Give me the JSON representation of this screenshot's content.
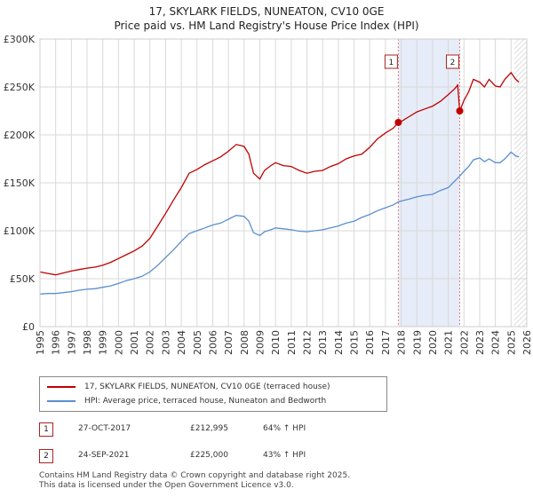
{
  "header": {
    "title": "17, SKYLARK FIELDS, NUNEATON, CV10 0GE",
    "subtitle": "Price paid vs. HM Land Registry's House Price Index (HPI)"
  },
  "colors": {
    "price_paid": "#c00000",
    "hpi": "#5a8fd0",
    "highlight_band": "#e6ecf8",
    "marker_line": "#e08080",
    "grid": "#d9d9d9"
  },
  "chart_data": {
    "type": "line",
    "title": "",
    "xlabel": "",
    "ylabel": "",
    "xlim": [
      1995,
      2026
    ],
    "ylim": [
      0,
      300000
    ],
    "y_ticks": [
      {
        "value": 0,
        "label": "£0"
      },
      {
        "value": 50000,
        "label": "£50K"
      },
      {
        "value": 100000,
        "label": "£100K"
      },
      {
        "value": 150000,
        "label": "£150K"
      },
      {
        "value": 200000,
        "label": "£200K"
      },
      {
        "value": 250000,
        "label": "£250K"
      },
      {
        "value": 300000,
        "label": "£300K"
      }
    ],
    "x_ticks": [
      "1995",
      "1996",
      "1997",
      "1998",
      "1999",
      "2000",
      "2001",
      "2002",
      "2003",
      "2004",
      "2005",
      "2006",
      "2007",
      "2008",
      "2009",
      "2010",
      "2011",
      "2012",
      "2013",
      "2014",
      "2015",
      "2016",
      "2017",
      "2018",
      "2019",
      "2020",
      "2021",
      "2022",
      "2023",
      "2024",
      "2025",
      "2026"
    ],
    "grid": true,
    "highlight_range": [
      2017.82,
      2021.73
    ],
    "hatched_from": 2025.2,
    "series": [
      {
        "name": "17, SKYLARK FIELDS, NUNEATON, CV10 0GE (terraced house)",
        "color": "#c00000",
        "points": [
          [
            1995.0,
            57000
          ],
          [
            1995.5,
            55500
          ],
          [
            1996.0,
            54000
          ],
          [
            1996.5,
            56000
          ],
          [
            1997.0,
            58000
          ],
          [
            1997.5,
            59500
          ],
          [
            1998.0,
            61000
          ],
          [
            1998.5,
            62000
          ],
          [
            1999.0,
            64000
          ],
          [
            1999.5,
            67000
          ],
          [
            2000.0,
            71000
          ],
          [
            2000.5,
            75000
          ],
          [
            2001.0,
            79000
          ],
          [
            2001.5,
            84000
          ],
          [
            2002.0,
            92000
          ],
          [
            2002.5,
            105000
          ],
          [
            2003.0,
            118000
          ],
          [
            2003.5,
            132000
          ],
          [
            2004.0,
            145000
          ],
          [
            2004.5,
            160000
          ],
          [
            2005.0,
            164000
          ],
          [
            2005.5,
            169000
          ],
          [
            2006.0,
            173000
          ],
          [
            2006.5,
            177000
          ],
          [
            2007.0,
            183000
          ],
          [
            2007.5,
            190000
          ],
          [
            2008.0,
            188000
          ],
          [
            2008.3,
            180000
          ],
          [
            2008.6,
            160000
          ],
          [
            2009.0,
            154000
          ],
          [
            2009.3,
            163000
          ],
          [
            2009.7,
            168000
          ],
          [
            2010.0,
            171000
          ],
          [
            2010.5,
            168000
          ],
          [
            2011.0,
            167000
          ],
          [
            2011.5,
            163000
          ],
          [
            2012.0,
            160000
          ],
          [
            2012.5,
            162000
          ],
          [
            2013.0,
            163000
          ],
          [
            2013.5,
            167000
          ],
          [
            2014.0,
            170000
          ],
          [
            2014.5,
            175000
          ],
          [
            2015.0,
            178000
          ],
          [
            2015.5,
            180000
          ],
          [
            2016.0,
            187000
          ],
          [
            2016.5,
            196000
          ],
          [
            2017.0,
            202000
          ],
          [
            2017.5,
            207000
          ],
          [
            2017.82,
            212995
          ],
          [
            2018.0,
            214000
          ],
          [
            2018.5,
            219000
          ],
          [
            2019.0,
            224000
          ],
          [
            2019.5,
            227000
          ],
          [
            2020.0,
            230000
          ],
          [
            2020.5,
            235000
          ],
          [
            2021.0,
            242000
          ],
          [
            2021.4,
            248000
          ],
          [
            2021.6,
            252000
          ],
          [
            2021.73,
            225000
          ],
          [
            2022.0,
            236000
          ],
          [
            2022.3,
            245000
          ],
          [
            2022.6,
            258000
          ],
          [
            2023.0,
            255000
          ],
          [
            2023.3,
            250000
          ],
          [
            2023.6,
            258000
          ],
          [
            2024.0,
            251000
          ],
          [
            2024.3,
            250000
          ],
          [
            2024.6,
            258000
          ],
          [
            2025.0,
            265000
          ],
          [
            2025.3,
            258000
          ],
          [
            2025.5,
            255000
          ]
        ]
      },
      {
        "name": "HPI: Average price, terraced house, Nuneaton and Bedworth",
        "color": "#5a8fd0",
        "points": [
          [
            1995.0,
            34000
          ],
          [
            1995.5,
            34500
          ],
          [
            1996.0,
            34500
          ],
          [
            1996.5,
            35500
          ],
          [
            1997.0,
            36500
          ],
          [
            1997.5,
            38000
          ],
          [
            1998.0,
            39000
          ],
          [
            1998.5,
            39500
          ],
          [
            1999.0,
            41000
          ],
          [
            1999.5,
            42500
          ],
          [
            2000.0,
            45000
          ],
          [
            2000.5,
            48000
          ],
          [
            2001.0,
            50000
          ],
          [
            2001.5,
            52500
          ],
          [
            2002.0,
            57000
          ],
          [
            2002.5,
            64000
          ],
          [
            2003.0,
            72000
          ],
          [
            2003.5,
            80000
          ],
          [
            2004.0,
            89000
          ],
          [
            2004.5,
            97000
          ],
          [
            2005.0,
            100000
          ],
          [
            2005.5,
            103000
          ],
          [
            2006.0,
            106000
          ],
          [
            2006.5,
            108000
          ],
          [
            2007.0,
            112000
          ],
          [
            2007.5,
            116000
          ],
          [
            2008.0,
            115000
          ],
          [
            2008.3,
            110000
          ],
          [
            2008.6,
            98000
          ],
          [
            2009.0,
            95000
          ],
          [
            2009.3,
            99000
          ],
          [
            2009.7,
            101000
          ],
          [
            2010.0,
            103000
          ],
          [
            2010.5,
            102000
          ],
          [
            2011.0,
            101000
          ],
          [
            2011.5,
            99500
          ],
          [
            2012.0,
            99000
          ],
          [
            2012.5,
            100000
          ],
          [
            2013.0,
            101000
          ],
          [
            2013.5,
            103000
          ],
          [
            2014.0,
            105000
          ],
          [
            2014.5,
            108000
          ],
          [
            2015.0,
            110000
          ],
          [
            2015.5,
            114000
          ],
          [
            2016.0,
            117000
          ],
          [
            2016.5,
            121000
          ],
          [
            2017.0,
            124000
          ],
          [
            2017.5,
            127000
          ],
          [
            2017.82,
            130000
          ],
          [
            2018.0,
            131000
          ],
          [
            2018.5,
            133000
          ],
          [
            2019.0,
            135500
          ],
          [
            2019.5,
            137000
          ],
          [
            2020.0,
            138000
          ],
          [
            2020.5,
            142000
          ],
          [
            2021.0,
            145000
          ],
          [
            2021.73,
            157000
          ],
          [
            2022.0,
            162000
          ],
          [
            2022.3,
            167000
          ],
          [
            2022.6,
            174000
          ],
          [
            2023.0,
            176000
          ],
          [
            2023.3,
            172000
          ],
          [
            2023.6,
            175000
          ],
          [
            2024.0,
            171000
          ],
          [
            2024.3,
            171000
          ],
          [
            2024.6,
            175000
          ],
          [
            2025.0,
            182000
          ],
          [
            2025.3,
            178000
          ],
          [
            2025.5,
            177000
          ]
        ]
      }
    ],
    "sales": [
      {
        "label": "1",
        "x": 2017.82,
        "y": 212995
      },
      {
        "label": "2",
        "x": 2021.73,
        "y": 225000
      }
    ]
  },
  "legend": {
    "items": [
      {
        "label": "17, SKYLARK FIELDS, NUNEATON, CV10 0GE (terraced house)",
        "color": "#c00000"
      },
      {
        "label": "HPI: Average price, terraced house, Nuneaton and Bedworth",
        "color": "#5a8fd0"
      }
    ]
  },
  "sales_table": [
    {
      "number": "1",
      "date": "27-OCT-2017",
      "price": "£212,995",
      "hpi": "64% ↑ HPI"
    },
    {
      "number": "2",
      "date": "24-SEP-2021",
      "price": "£225,000",
      "hpi": "43% ↑ HPI"
    }
  ],
  "footer": {
    "line1": "Contains HM Land Registry data © Crown copyright and database right 2025.",
    "line2": "This data is licensed under the Open Government Licence v3.0."
  }
}
